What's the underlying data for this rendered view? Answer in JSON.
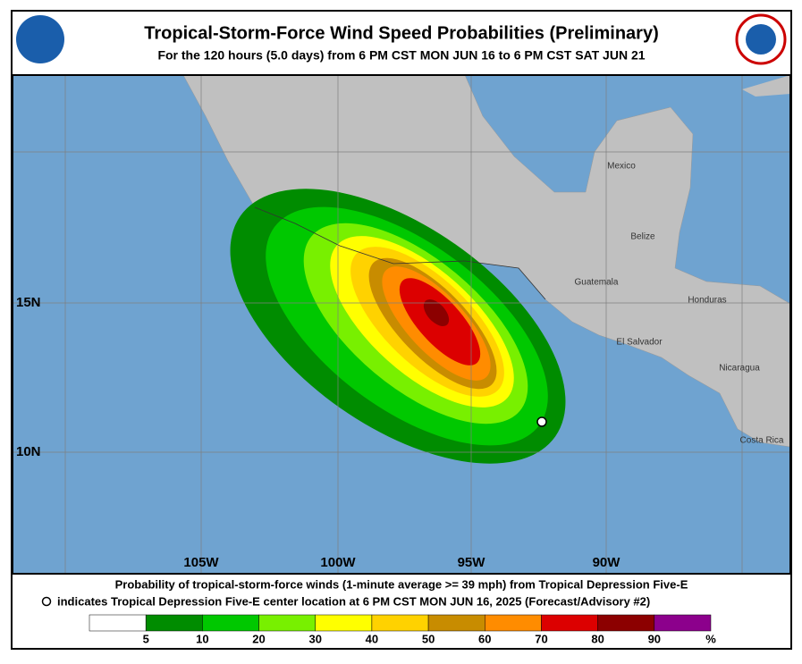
{
  "header": {
    "title": "Tropical-Storm-Force Wind Speed Probabilities (Preliminary)",
    "subtitle": "For the 120 hours (5.0 days) from 6 PM CST MON JUN 16 to 6 PM CST SAT JUN 21"
  },
  "map": {
    "place_labels": [
      "Mexico",
      "Belize",
      "Guatemala",
      "Honduras",
      "El Salvador",
      "Nicaragua",
      "Costa Rica"
    ],
    "lat_labels": [
      "15N",
      "10N"
    ],
    "lon_labels": [
      "105W",
      "100W",
      "95W",
      "90W"
    ]
  },
  "footer": {
    "line1": "Probability of tropical-storm-force winds (1-minute average >= 39 mph) from Tropical Depression Five-E",
    "line2": "indicates Tropical Depression Five-E center location at 6 PM CST MON JUN 16, 2025 (Forecast/Advisory #2)"
  },
  "legend": {
    "ticks": [
      5,
      10,
      20,
      30,
      40,
      50,
      60,
      70,
      80,
      90
    ],
    "unit": "%",
    "colors": [
      "#ffffff",
      "#008c00",
      "#00c800",
      "#78f000",
      "#ffff00",
      "#ffd200",
      "#c88c00",
      "#ff8c00",
      "#dc0000",
      "#8c0000",
      "#8c008c"
    ]
  }
}
